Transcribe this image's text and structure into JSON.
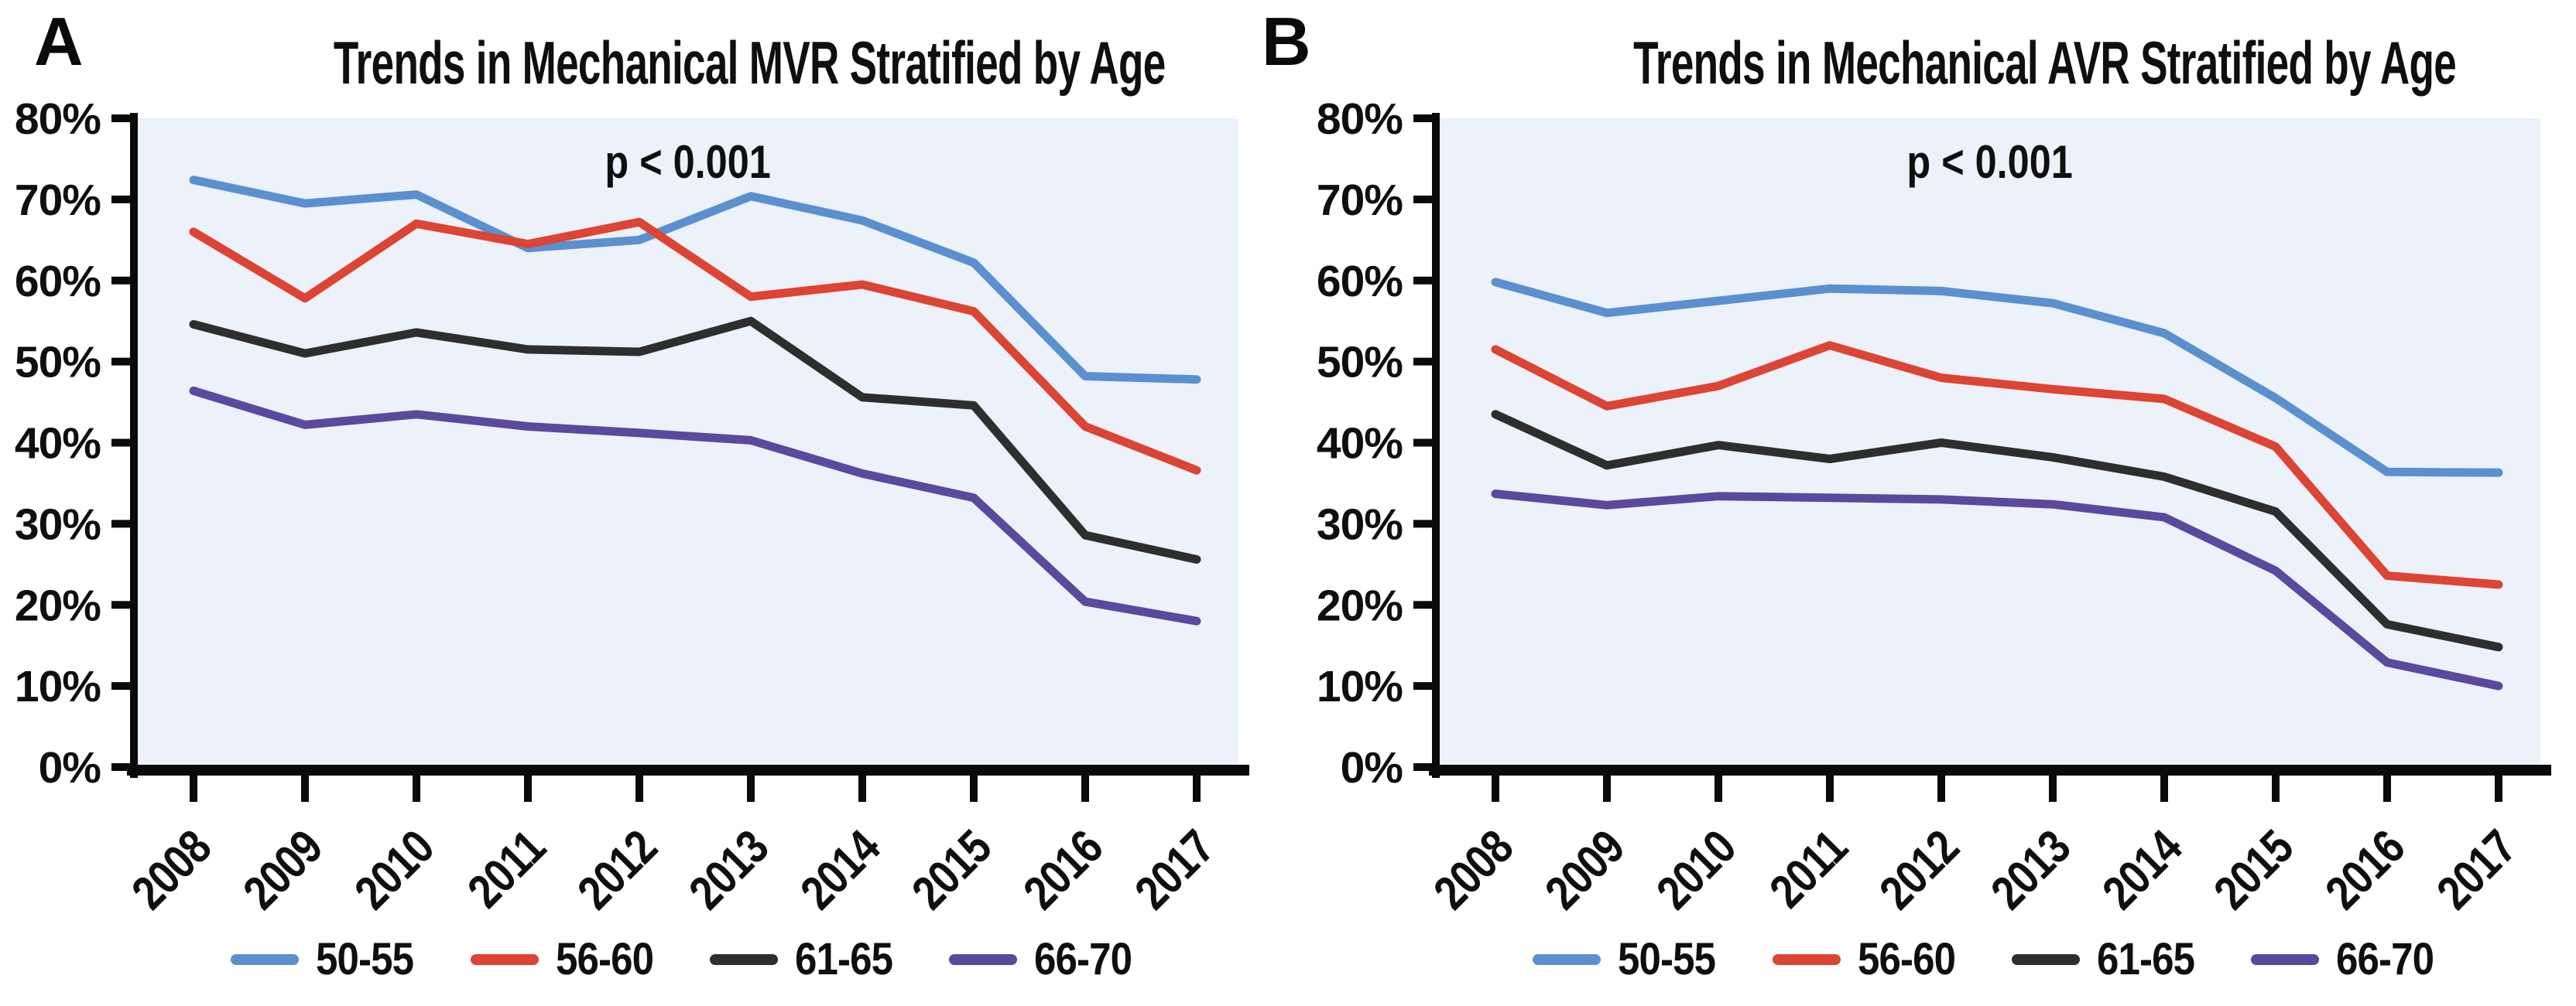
{
  "style": {
    "page_background": "#ffffff",
    "plot_background": "#edf1f9",
    "axis_color": "#0a0a0a",
    "text_color": "#0f0f0f"
  },
  "chart_data": [
    {
      "type": "line",
      "panel_label": "A",
      "title": "Trends in Mechanical MVR Stratified by Age",
      "annotation": "p < 0.001",
      "categories": [
        "2008",
        "2009",
        "2010",
        "2011",
        "2012",
        "2013",
        "2014",
        "2015",
        "2016",
        "2017"
      ],
      "xlabel": "",
      "ylabel": "",
      "ylim": [
        0,
        80
      ],
      "y_tick_labels": [
        "0%",
        "10%",
        "20%",
        "30%",
        "40%",
        "50%",
        "60%",
        "70%",
        "80%"
      ],
      "grid": false,
      "legend_position": "bottom",
      "series": [
        {
          "name": "50-55",
          "color": "#5b90cf",
          "values": [
            72.4,
            69.5,
            70.6,
            64.0,
            65.0,
            70.4,
            67.4,
            62.2,
            48.2,
            47.8
          ]
        },
        {
          "name": "56-60",
          "color": "#dc4434",
          "values": [
            66.0,
            57.8,
            67.0,
            64.5,
            67.2,
            58.0,
            59.5,
            56.2,
            42.0,
            36.6
          ]
        },
        {
          "name": "61-65",
          "color": "#2e2e2e",
          "values": [
            54.6,
            51.0,
            53.6,
            51.5,
            51.2,
            55.0,
            45.6,
            44.6,
            28.6,
            25.6
          ]
        },
        {
          "name": "66-70",
          "color": "#5a4a9e",
          "values": [
            46.4,
            42.2,
            43.5,
            42.0,
            41.2,
            40.3,
            36.2,
            33.2,
            20.4,
            18.0
          ]
        }
      ]
    },
    {
      "type": "line",
      "panel_label": "B",
      "title": "Trends in Mechanical AVR Stratified by Age",
      "annotation": "p < 0.001",
      "categories": [
        "2008",
        "2009",
        "2010",
        "2011",
        "2012",
        "2013",
        "2014",
        "2015",
        "2016",
        "2017"
      ],
      "xlabel": "",
      "ylabel": "",
      "ylim": [
        0,
        80
      ],
      "y_tick_labels": [
        "0%",
        "10%",
        "20%",
        "30%",
        "40%",
        "50%",
        "60%",
        "70%",
        "80%"
      ],
      "grid": false,
      "legend_position": "bottom",
      "series": [
        {
          "name": "50-55",
          "color": "#5b90cf",
          "values": [
            59.8,
            56.0,
            57.5,
            59.0,
            58.7,
            57.2,
            53.5,
            45.5,
            36.4,
            36.3
          ]
        },
        {
          "name": "56-60",
          "color": "#dc4434",
          "values": [
            51.5,
            44.5,
            47.0,
            52.0,
            48.0,
            46.6,
            45.4,
            39.5,
            23.6,
            22.5
          ]
        },
        {
          "name": "61-65",
          "color": "#2e2e2e",
          "values": [
            43.5,
            37.2,
            39.7,
            38.0,
            40.0,
            38.2,
            35.8,
            31.5,
            17.6,
            14.8
          ]
        },
        {
          "name": "66-70",
          "color": "#5a4a9e",
          "values": [
            33.7,
            32.3,
            33.4,
            33.2,
            33.0,
            32.4,
            30.8,
            24.2,
            12.9,
            10.0
          ]
        }
      ]
    }
  ]
}
